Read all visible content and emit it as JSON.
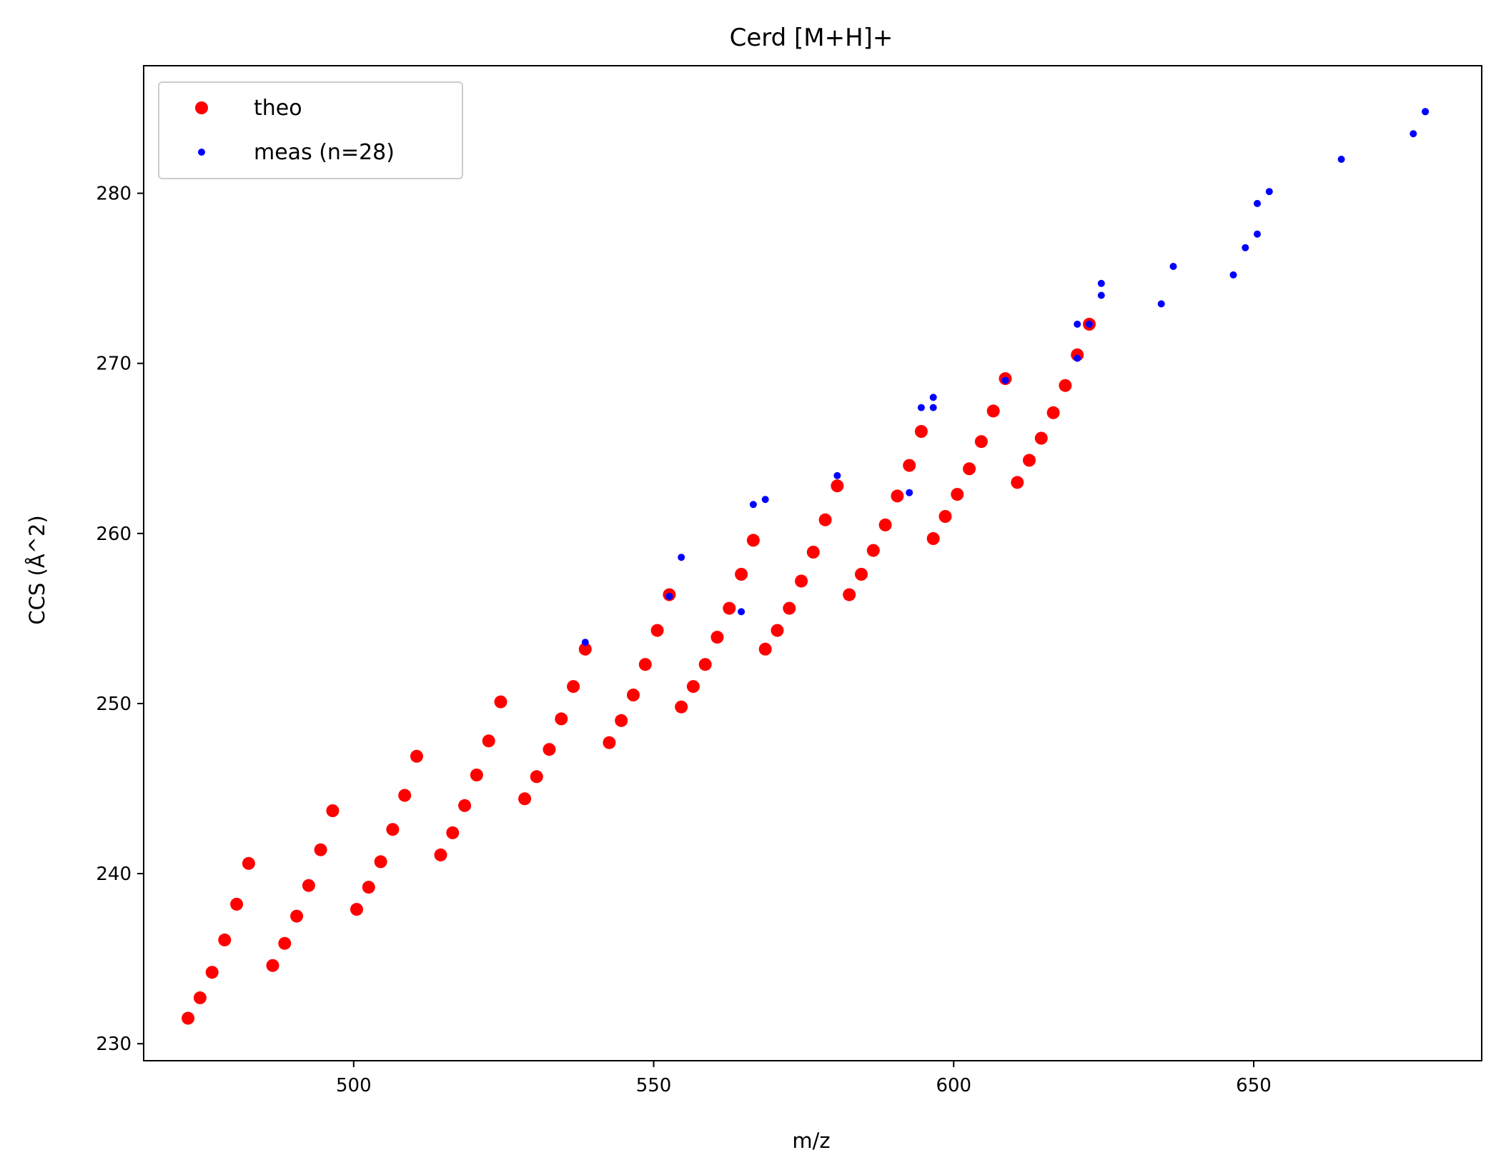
{
  "chart_data": {
    "type": "scatter",
    "title": "Cerd [M+H]+",
    "xlabel": "m/z",
    "ylabel": "CCS (Å^2)",
    "xlim": [
      465,
      688
    ],
    "ylim": [
      229,
      287.5
    ],
    "xticks": [
      500,
      550,
      600,
      650
    ],
    "yticks": [
      230,
      240,
      250,
      260,
      270,
      280
    ],
    "grid": false,
    "legend_position": "top-left",
    "series": [
      {
        "name": "theo",
        "color": "#ff0000",
        "marker_size": "large",
        "points": [
          [
            472.4,
            231.5
          ],
          [
            474.4,
            232.7
          ],
          [
            476.4,
            234.2
          ],
          [
            478.5,
            236.1
          ],
          [
            480.5,
            238.2
          ],
          [
            482.5,
            240.6
          ],
          [
            486.5,
            234.6
          ],
          [
            488.5,
            235.9
          ],
          [
            490.5,
            237.5
          ],
          [
            492.5,
            239.3
          ],
          [
            494.5,
            241.4
          ],
          [
            496.5,
            243.7
          ],
          [
            500.5,
            237.9
          ],
          [
            502.5,
            239.2
          ],
          [
            504.5,
            240.7
          ],
          [
            506.5,
            242.6
          ],
          [
            508.5,
            244.6
          ],
          [
            510.5,
            246.9
          ],
          [
            514.5,
            241.1
          ],
          [
            516.5,
            242.4
          ],
          [
            518.5,
            244.0
          ],
          [
            520.5,
            245.8
          ],
          [
            522.5,
            247.8
          ],
          [
            524.5,
            250.1
          ],
          [
            528.5,
            244.4
          ],
          [
            530.5,
            245.7
          ],
          [
            532.6,
            247.3
          ],
          [
            534.6,
            249.1
          ],
          [
            536.6,
            251.0
          ],
          [
            538.6,
            253.2
          ],
          [
            542.6,
            247.7
          ],
          [
            544.6,
            249.0
          ],
          [
            546.6,
            250.5
          ],
          [
            548.6,
            252.3
          ],
          [
            550.6,
            254.3
          ],
          [
            552.6,
            256.4
          ],
          [
            554.6,
            249.8
          ],
          [
            556.6,
            251.0
          ],
          [
            558.6,
            252.3
          ],
          [
            560.6,
            253.9
          ],
          [
            562.6,
            255.6
          ],
          [
            564.6,
            257.6
          ],
          [
            566.6,
            259.6
          ],
          [
            568.6,
            253.2
          ],
          [
            570.6,
            254.3
          ],
          [
            572.6,
            255.6
          ],
          [
            574.6,
            257.2
          ],
          [
            576.6,
            258.9
          ],
          [
            578.6,
            260.8
          ],
          [
            580.6,
            262.8
          ],
          [
            582.6,
            256.4
          ],
          [
            584.6,
            257.6
          ],
          [
            586.6,
            259.0
          ],
          [
            588.6,
            260.5
          ],
          [
            590.6,
            262.2
          ],
          [
            592.6,
            264.0
          ],
          [
            594.6,
            266.0
          ],
          [
            596.6,
            259.7
          ],
          [
            598.6,
            261.0
          ],
          [
            600.6,
            262.3
          ],
          [
            602.6,
            263.8
          ],
          [
            604.6,
            265.4
          ],
          [
            606.6,
            267.2
          ],
          [
            608.6,
            269.1
          ],
          [
            610.6,
            263.0
          ],
          [
            612.6,
            264.3
          ],
          [
            614.6,
            265.6
          ],
          [
            616.6,
            267.1
          ],
          [
            618.6,
            268.7
          ],
          [
            620.6,
            270.5
          ],
          [
            622.6,
            272.3
          ]
        ]
      },
      {
        "name": "meas (n=28)",
        "color": "#0000ff",
        "marker_size": "small",
        "points": [
          [
            538.6,
            253.6
          ],
          [
            552.6,
            256.3
          ],
          [
            554.6,
            258.6
          ],
          [
            564.6,
            255.4
          ],
          [
            566.6,
            261.7
          ],
          [
            568.6,
            262.0
          ],
          [
            580.6,
            263.4
          ],
          [
            592.6,
            262.4
          ],
          [
            594.6,
            267.4
          ],
          [
            596.6,
            267.4
          ],
          [
            596.6,
            268.0
          ],
          [
            608.6,
            269.0
          ],
          [
            620.6,
            270.3
          ],
          [
            620.6,
            272.3
          ],
          [
            622.6,
            272.3
          ],
          [
            624.6,
            274.0
          ],
          [
            624.6,
            274.7
          ],
          [
            634.6,
            273.5
          ],
          [
            636.6,
            275.7
          ],
          [
            646.6,
            275.2
          ],
          [
            648.6,
            276.8
          ],
          [
            650.6,
            277.6
          ],
          [
            650.6,
            279.4
          ],
          [
            652.6,
            280.1
          ],
          [
            664.6,
            282.0
          ],
          [
            676.6,
            283.5
          ],
          [
            678.6,
            284.8
          ],
          [
            678.6,
            284.8
          ]
        ]
      }
    ]
  }
}
